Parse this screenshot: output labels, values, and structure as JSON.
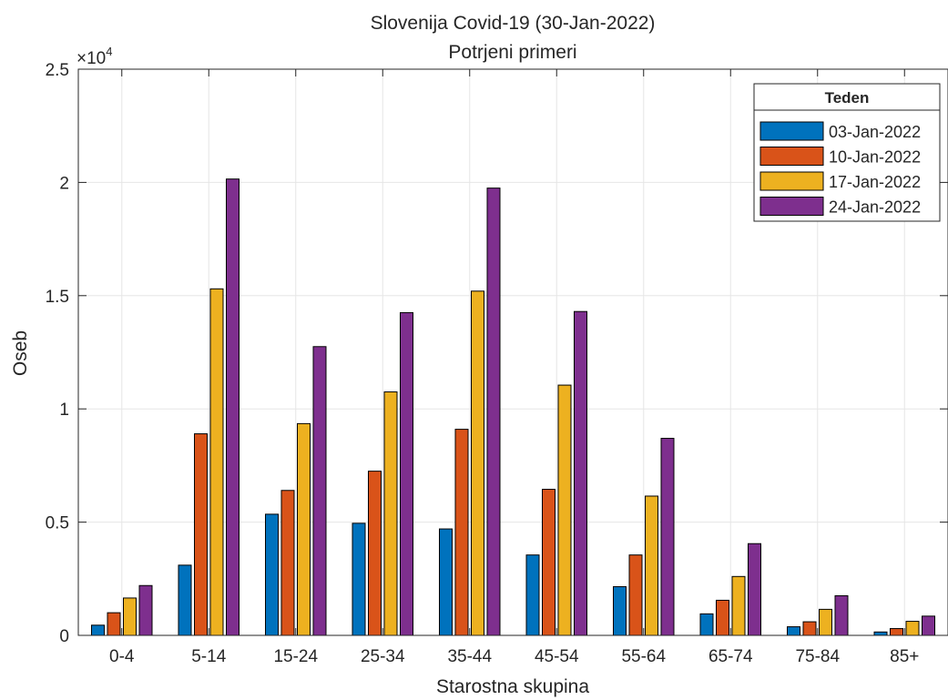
{
  "chart_data": {
    "type": "bar",
    "title": "Slovenija Covid-19 (30-Jan-2022)",
    "subtitle": "Potrjeni primeri",
    "xlabel": "Starostna skupina",
    "ylabel": "Oseb",
    "y_exponent_label": "×10",
    "y_exponent_power": "4",
    "ylim": [
      0,
      25000
    ],
    "yticks": [
      0,
      5000,
      10000,
      15000,
      20000,
      25000
    ],
    "ytick_labels": [
      "0",
      "0.5",
      "1",
      "1.5",
      "2",
      "2.5"
    ],
    "grid": true,
    "legend_title": "Teden",
    "legend_position": "top-right",
    "categories": [
      "0-4",
      "5-14",
      "15-24",
      "25-34",
      "35-44",
      "45-54",
      "55-64",
      "65-74",
      "75-84",
      "85+"
    ],
    "series": [
      {
        "name": "03-Jan-2022",
        "color": "#0072BD",
        "values": [
          450,
          3100,
          5350,
          4950,
          4700,
          3550,
          2150,
          950,
          380,
          150
        ]
      },
      {
        "name": "10-Jan-2022",
        "color": "#D95319",
        "values": [
          1000,
          8900,
          6400,
          7250,
          9100,
          6450,
          3550,
          1550,
          600,
          300
        ]
      },
      {
        "name": "17-Jan-2022",
        "color": "#EDB120",
        "values": [
          1650,
          15300,
          9350,
          10750,
          15200,
          11050,
          6150,
          2600,
          1150,
          620
        ]
      },
      {
        "name": "24-Jan-2022",
        "color": "#7E2F8E",
        "values": [
          2200,
          20150,
          12750,
          14250,
          19750,
          14300,
          8700,
          4050,
          1750,
          850
        ]
      }
    ]
  }
}
